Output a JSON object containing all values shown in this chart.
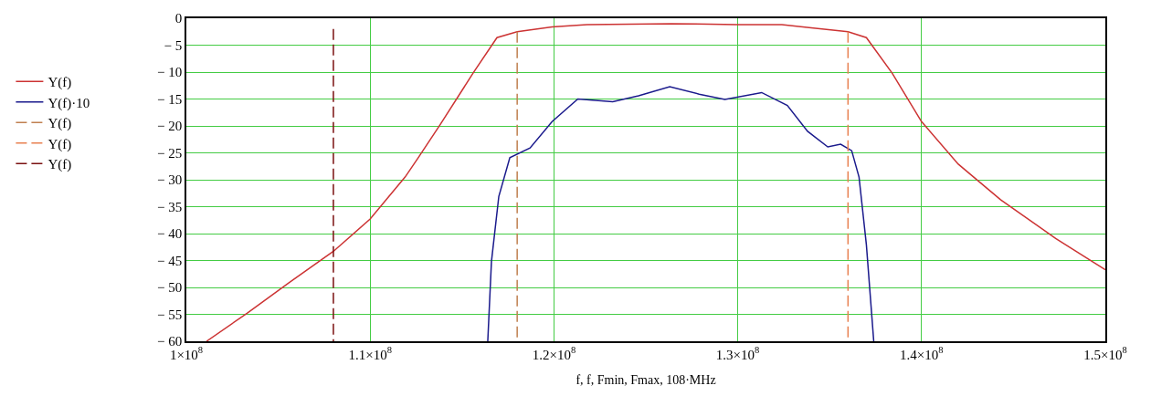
{
  "chart_data": {
    "type": "line",
    "xlabel": "f, f, Fmin, Fmax, 108·MHz",
    "xlim": [
      100000000,
      150000000
    ],
    "ylim": [
      -60,
      0
    ],
    "xticks": [
      {
        "value": 100000000,
        "label": "1×10$^{8}$"
      },
      {
        "value": 110000000,
        "label": "1.1×10$^{8}$"
      },
      {
        "value": 120000000,
        "label": "1.2×10$^{8}$"
      },
      {
        "value": 130000000,
        "label": "1.3×10$^{8}$"
      },
      {
        "value": 140000000,
        "label": "1.4×10$^{8}$"
      },
      {
        "value": 150000000,
        "label": "1.5×10$^{8}$"
      }
    ],
    "yticks": [
      0,
      {
        "value": -5,
        "label": "− 5"
      },
      {
        "value": -10,
        "label": "− 10"
      },
      {
        "value": -15,
        "label": "− 15"
      },
      {
        "value": -20,
        "label": "− 20"
      },
      {
        "value": -25,
        "label": "− 25"
      },
      {
        "value": -30,
        "label": "− 30"
      },
      {
        "value": -35,
        "label": "− 35"
      },
      {
        "value": -40,
        "label": "− 40"
      },
      {
        "value": -45,
        "label": "− 45"
      },
      {
        "value": -50,
        "label": "− 50"
      },
      {
        "value": -55,
        "label": "− 55"
      },
      {
        "value": -60,
        "label": "− 60"
      }
    ],
    "grid": true,
    "legend": "left",
    "marker": "none",
    "series": [
      {
        "name": "Y(f)",
        "color": "#cc3333",
        "line_style": "solid",
        "x": [
          101100000,
          103300000,
          105600000,
          108000000,
          110000000,
          111900000,
          112600000,
          113800000,
          115600000,
          116900000,
          118000000,
          119900000,
          121800000,
          126400000,
          130000000,
          132400000,
          134000000,
          136000000,
          137000000,
          138400000,
          140000000,
          142000000,
          144300000,
          147300000,
          150000000
        ],
        "values": [
          -60,
          -54.8,
          -49.1,
          -43.3,
          -37.3,
          -29.5,
          -26,
          -19.8,
          -10.2,
          -3.6,
          -2.5,
          -1.6,
          -1.2,
          -1.0,
          -1.2,
          -1.2,
          -1.8,
          -2.5,
          -3.6,
          -10.2,
          -19.2,
          -27.1,
          -33.7,
          -40.9,
          -46.7
        ]
      },
      {
        "name": "Y(f)·10",
        "color": "#1a1a8c",
        "line_style": "solid",
        "x": [
          116400000,
          116600000,
          117000000,
          117600000,
          118700000,
          119900000,
          121300000,
          123200000,
          124600000,
          126300000,
          127900000,
          129300000,
          131300000,
          132700000,
          133800000,
          134900000,
          135600000,
          136200000,
          136600000,
          137000000,
          137400000
        ],
        "values": [
          -60,
          -45.2,
          -33.1,
          -25.9,
          -24.1,
          -19.2,
          -15.0,
          -15.5,
          -14.4,
          -12.7,
          -14.1,
          -15.1,
          -13.8,
          -16.2,
          -21.0,
          -23.9,
          -23.4,
          -24.6,
          -29.5,
          -42.1,
          -60
        ]
      },
      {
        "name": "Y(f)",
        "color": "#c08050",
        "line_style": "dashed",
        "x": [
          118000000,
          118000000
        ],
        "values": [
          -2.5,
          -60
        ]
      },
      {
        "name": "Y(f)",
        "color": "#e88050",
        "line_style": "dashed",
        "x": [
          136000000,
          136000000
        ],
        "values": [
          -2.5,
          -60
        ]
      },
      {
        "name": "Y(f)",
        "color": "#7a1010",
        "line_style": "dashed",
        "x": [
          108000000,
          108000000
        ],
        "values": [
          -2,
          -60
        ]
      }
    ]
  }
}
